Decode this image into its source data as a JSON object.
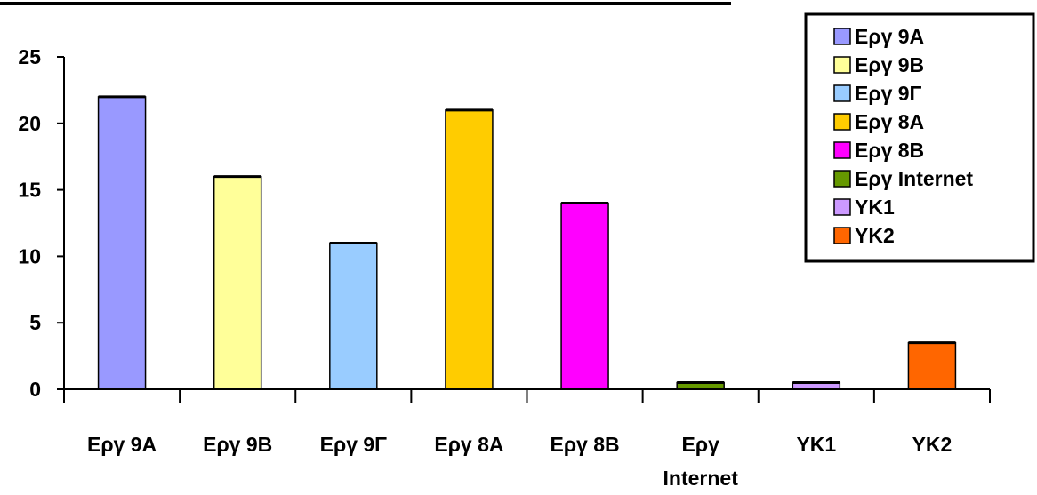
{
  "chart_data": {
    "type": "bar",
    "categories": [
      "Εργ 9Α",
      "Εργ 9Β",
      "Εργ 9Γ",
      "Εργ 8Α",
      "Εργ 8Β",
      "Εργ Internet",
      "ΥΚ1",
      "ΥΚ2"
    ],
    "category_lines": [
      [
        "Εργ 9Α"
      ],
      [
        "Εργ 9Β"
      ],
      [
        "Εργ 9Γ"
      ],
      [
        "Εργ 8Α"
      ],
      [
        "Εργ 8Β"
      ],
      [
        "Εργ",
        "Internet"
      ],
      [
        "ΥΚ1"
      ],
      [
        "ΥΚ2"
      ]
    ],
    "values": [
      22,
      16,
      11,
      21,
      14,
      0.5,
      0.5,
      3.5
    ],
    "colors": [
      "#9999ff",
      "#ffff99",
      "#99ccff",
      "#ffcc00",
      "#ff00ff",
      "#669900",
      "#cc99ff",
      "#ff6600"
    ],
    "ylim": [
      0,
      25
    ],
    "yticks": [
      0,
      5,
      10,
      15,
      20,
      25
    ],
    "legend": [
      "Εργ 9Α",
      "Εργ 9Β",
      "Εργ 9Γ",
      "Εργ 8Α",
      "Εργ 8Β",
      "Εργ Internet",
      "ΥΚ1",
      "ΥΚ2"
    ],
    "legend_position": "top-right",
    "grid": false,
    "title": "",
    "xlabel": "",
    "ylabel": ""
  }
}
